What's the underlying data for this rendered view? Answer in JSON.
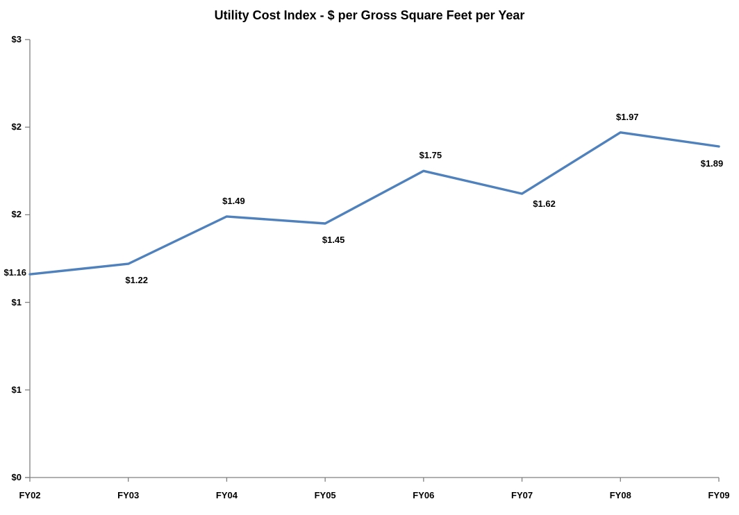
{
  "chart_data": {
    "type": "line",
    "title": "Utility Cost Index - $ per Gross Square Feet per Year",
    "categories": [
      "FY02",
      "FY03",
      "FY04",
      "FY05",
      "FY06",
      "FY07",
      "FY08",
      "FY09"
    ],
    "series": [
      {
        "name": "utility-cost-index",
        "values": [
          1.16,
          1.22,
          1.49,
          1.45,
          1.75,
          1.62,
          1.97,
          1.89
        ],
        "data_labels": [
          "$1.16",
          "$1.22",
          "$1.49",
          "$1.45",
          "$1.75",
          "$1.62",
          "$1.97",
          "$1.89"
        ],
        "label_placements": [
          "left",
          "below",
          "above",
          "below",
          "above",
          "below-right",
          "above",
          "below-left"
        ]
      }
    ],
    "xlabel": "",
    "ylabel": "",
    "ylim": [
      0,
      2.5
    ],
    "ytick_values": [
      0,
      0.5,
      1,
      1.5,
      2,
      2.5
    ],
    "ytick_labels": [
      "$0",
      "$1",
      "$1",
      "$2",
      "$2",
      "$3"
    ],
    "grid": false,
    "legend": "none",
    "colors": {
      "line": "#4F81BD",
      "axis": "#808080",
      "text": "#000000",
      "background": "#FFFFFF"
    }
  }
}
